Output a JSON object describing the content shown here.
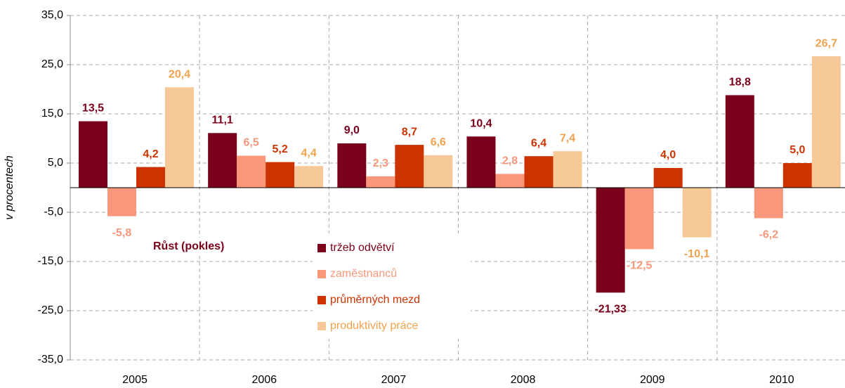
{
  "chart_data": {
    "type": "bar",
    "y_axis_label": "v procentech",
    "legend_title": "Růst (pokles)",
    "categories": [
      "2005",
      "2006",
      "2007",
      "2008",
      "2009",
      "2010"
    ],
    "series": [
      {
        "name": "tržeb odvětví",
        "color": "#7b0019",
        "label_color": "#7b0019",
        "values": [
          13.5,
          11.1,
          9.0,
          10.4,
          -21.33,
          18.8
        ],
        "value_labels": [
          "13,5",
          "11,1",
          "9,0",
          "10,4",
          "-21,33",
          "18,8"
        ]
      },
      {
        "name": "zaměstnanců",
        "color": "#f9977a",
        "label_color": "#f9977a",
        "values": [
          -5.8,
          6.5,
          2.3,
          2.8,
          -12.5,
          -6.2
        ],
        "value_labels": [
          "-5,8",
          "6,5",
          "2,3",
          "2,8",
          "-12,5",
          "-6,2"
        ]
      },
      {
        "name": "průměrných mezd",
        "color": "#cc3300",
        "label_color": "#cc3300",
        "values": [
          4.2,
          5.2,
          8.7,
          6.4,
          4.0,
          5.0
        ],
        "value_labels": [
          "4,2",
          "5,2",
          "8,7",
          "6,4",
          "4,0",
          "5,0"
        ]
      },
      {
        "name": "produktivity práce",
        "color": "#f6c797",
        "label_color": "#f0a24f",
        "values": [
          20.4,
          4.4,
          6.6,
          7.4,
          -10.1,
          26.7
        ],
        "value_labels": [
          "20,4",
          "4,4",
          "6,6",
          "7,4",
          "-10,1",
          "26,7"
        ]
      }
    ],
    "ylim": [
      -35,
      35
    ],
    "yticks": [
      {
        "value": -35,
        "label": "-35,0"
      },
      {
        "value": -25,
        "label": "-25,0"
      },
      {
        "value": -15,
        "label": "-15,0"
      },
      {
        "value": -5,
        "label": "-5,0"
      },
      {
        "value": 5,
        "label": "5,0"
      },
      {
        "value": 15,
        "label": "15,0"
      },
      {
        "value": 25,
        "label": "25,0"
      },
      {
        "value": 35,
        "label": "35,0"
      }
    ],
    "grid": true
  }
}
